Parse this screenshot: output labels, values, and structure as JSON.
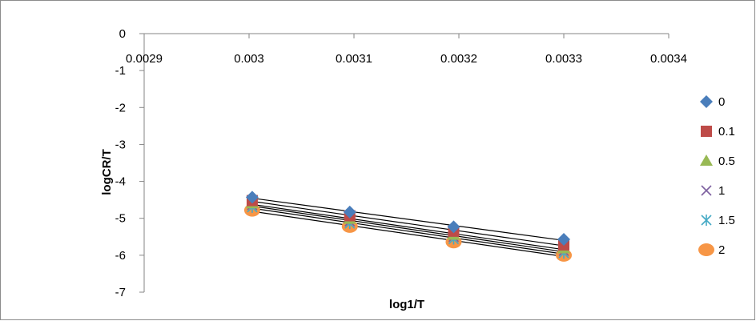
{
  "chart_data": {
    "type": "scatter",
    "title": "",
    "xlabel": "log1/T",
    "ylabel": "logCR/T",
    "xlim": [
      0.0029,
      0.0034
    ],
    "ylim": [
      -7,
      0
    ],
    "x_ticks": [
      "0.0029",
      "0.003",
      "0.0031",
      "0.0032",
      "0.0033",
      "0.0034"
    ],
    "y_ticks": [
      "0",
      "-1",
      "-2",
      "-3",
      "-4",
      "-5",
      "-6",
      "-7"
    ],
    "grid": false,
    "legend_position": "right",
    "trendlines": "linear",
    "x": [
      0.003003,
      0.003096,
      0.003195,
      0.0033
    ],
    "series": [
      {
        "name": "0",
        "marker": "diamond",
        "color": "#4a7ebb",
        "values": [
          -4.43,
          -4.83,
          -5.23,
          -5.57
        ]
      },
      {
        "name": "0.1",
        "marker": "square",
        "color": "#be4b48",
        "values": [
          -4.52,
          -4.93,
          -5.35,
          -5.72
        ]
      },
      {
        "name": "0.5",
        "marker": "triangle",
        "color": "#98b954",
        "values": [
          -4.6,
          -5.02,
          -5.45,
          -5.82
        ]
      },
      {
        "name": "1",
        "marker": "x",
        "color": "#7d60a0",
        "values": [
          -4.64,
          -5.08,
          -5.5,
          -5.88
        ]
      },
      {
        "name": "1.5",
        "marker": "star",
        "color": "#46aac5",
        "values": [
          -4.7,
          -5.14,
          -5.56,
          -5.94
        ]
      },
      {
        "name": "2",
        "marker": "circle",
        "color": "#f79646",
        "values": [
          -4.78,
          -5.22,
          -5.64,
          -6.0
        ]
      }
    ]
  }
}
